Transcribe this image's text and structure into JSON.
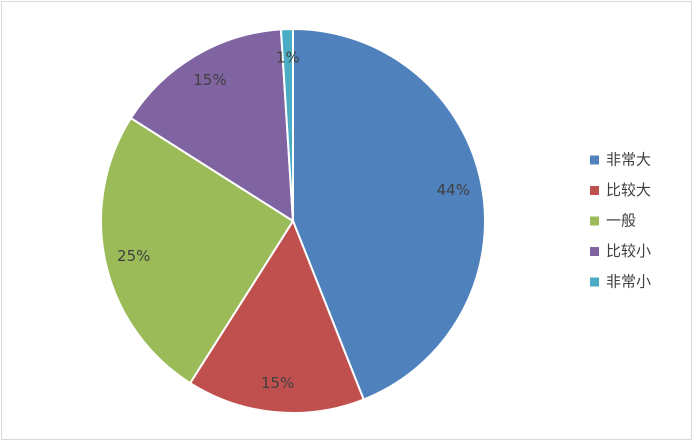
{
  "chart_data": {
    "type": "pie",
    "categories": [
      "非常大",
      "比较大",
      "一般",
      "比较小",
      "非常小"
    ],
    "values": [
      44,
      15,
      25,
      15,
      1
    ],
    "value_labels": [
      "44%",
      "15%",
      "25%",
      "15%",
      "1%"
    ],
    "colors": [
      "#4f81bd",
      "#c0504d",
      "#9bbb59",
      "#8064a2",
      "#4bacc6"
    ],
    "legend": "right"
  }
}
